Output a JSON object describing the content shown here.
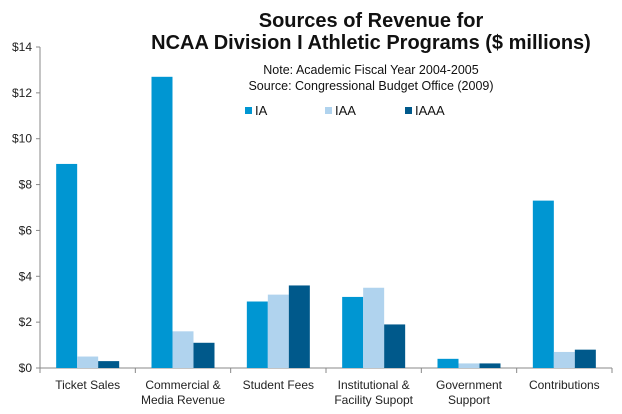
{
  "chart_data": {
    "type": "bar",
    "title_lines": [
      "Sources of Revenue for",
      "NCAA Division I Athletic Programs ($ millions)"
    ],
    "subtitle_lines": [
      "Note: Academic Fiscal Year 2004-2005",
      "Source: Congressional Budget Office (2009)"
    ],
    "categories": [
      [
        "Ticket Sales"
      ],
      [
        "Commercial &",
        "Media Revenue"
      ],
      [
        "Student Fees"
      ],
      [
        "Institutional &",
        "Facility Supopt"
      ],
      [
        "Government",
        "Support"
      ],
      [
        "Contributions"
      ]
    ],
    "series": [
      {
        "name": "IA",
        "color": "#0096d2",
        "values": [
          8.9,
          12.7,
          2.9,
          3.1,
          0.4,
          7.3
        ]
      },
      {
        "name": "IAA",
        "color": "#b0d3ee",
        "values": [
          0.5,
          1.6,
          3.2,
          3.5,
          0.2,
          0.7
        ]
      },
      {
        "name": "IAAA",
        "color": "#00598b",
        "values": [
          0.3,
          1.1,
          3.6,
          1.9,
          0.2,
          0.8
        ]
      }
    ],
    "yticks": [
      "$0",
      "$2",
      "$4",
      "$6",
      "$8",
      "$10",
      "$12",
      "$14"
    ],
    "ylim": [
      0,
      14
    ],
    "grid": false,
    "legend_placement": "top-center"
  }
}
